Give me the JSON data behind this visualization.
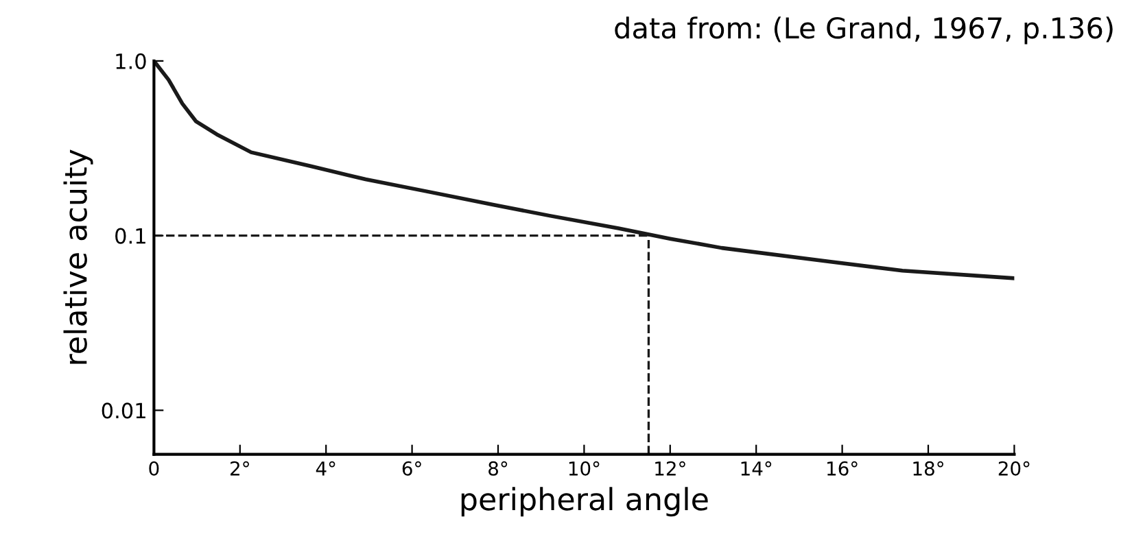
{
  "chart_data": {
    "type": "line",
    "xlabel": "peripheral angle",
    "ylabel": "relative acuity",
    "annotations": [
      "data from: (Le Grand, 1967, p.136)"
    ],
    "x": [
      0,
      0.34,
      0.66,
      0.98,
      1.46,
      2.26,
      3.64,
      4.92,
      6.3,
      7.9,
      9.2,
      10.8,
      12.0,
      13.2,
      15.7,
      17.4,
      20
    ],
    "series": [
      {
        "color": "#1a1a1a",
        "values": [
          1.0,
          0.78,
          0.57,
          0.45,
          0.38,
          0.3,
          0.25,
          0.21,
          0.18,
          0.15,
          0.13,
          0.11,
          0.096,
          0.085,
          0.071,
          0.063,
          0.057
        ]
      }
    ],
    "log": "y",
    "xlim": [
      0,
      20
    ],
    "ylim": [
      0.0056,
      1.0
    ],
    "xticks": [
      0,
      {
        "value": 2,
        "label": "2°"
      },
      {
        "value": 4,
        "label": "4°"
      },
      {
        "value": 6,
        "label": "6°"
      },
      {
        "value": 8,
        "label": "8°"
      },
      {
        "value": 10,
        "label": "10°"
      },
      {
        "value": 12,
        "label": "12°"
      },
      {
        "value": 14,
        "label": "14°"
      },
      {
        "value": 16,
        "label": "16°"
      },
      {
        "value": 18,
        "label": "18°"
      },
      {
        "value": 20,
        "label": "20°"
      }
    ],
    "yticks": [
      0.01,
      0.1,
      {
        "value": 1.0,
        "label": "1.0"
      }
    ],
    "ref_lines": [
      {
        "axis": "y",
        "value": 0.1,
        "line_style": "dashed",
        "color": "#1a1a1a"
      },
      {
        "axis": "x",
        "value": 11.5,
        "line_style": "dashed",
        "color": "#1a1a1a"
      }
    ],
    "grid": false,
    "marker": "none",
    "line_style": "solid"
  }
}
